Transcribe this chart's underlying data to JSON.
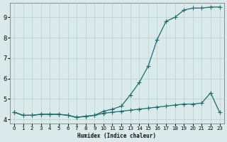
{
  "xlabel": "Humidex (Indice chaleur)",
  "ylabel": "",
  "bg_color": "#daeaea",
  "grid_color": "#b8d0d0",
  "line_color": "#1a6b6b",
  "xlim": [
    -0.5,
    23.5
  ],
  "ylim": [
    3.8,
    9.7
  ],
  "x_ticks": [
    0,
    1,
    2,
    3,
    4,
    5,
    6,
    7,
    8,
    9,
    10,
    11,
    12,
    13,
    14,
    15,
    16,
    17,
    18,
    19,
    20,
    21,
    22,
    23
  ],
  "y_ticks": [
    4,
    5,
    6,
    7,
    8,
    9
  ],
  "line1_x": [
    0,
    1,
    2,
    3,
    4,
    5,
    6,
    7,
    8,
    9,
    10,
    11,
    12,
    13,
    14,
    15,
    16,
    17,
    18,
    19,
    20,
    21,
    22,
    23
  ],
  "line1_y": [
    4.35,
    4.2,
    4.2,
    4.25,
    4.25,
    4.25,
    4.2,
    4.1,
    4.15,
    4.2,
    4.4,
    4.5,
    4.65,
    5.2,
    5.8,
    6.6,
    7.9,
    8.8,
    9.0,
    9.35,
    9.45,
    9.45,
    9.5,
    9.5
  ],
  "line2_x": [
    0,
    1,
    2,
    3,
    4,
    5,
    6,
    7,
    8,
    9,
    10,
    11,
    12,
    13,
    14,
    15,
    16,
    17,
    18,
    19,
    20,
    21,
    22,
    23
  ],
  "line2_y": [
    4.35,
    4.2,
    4.2,
    4.25,
    4.25,
    4.25,
    4.2,
    4.1,
    4.15,
    4.2,
    4.3,
    4.35,
    4.4,
    4.45,
    4.5,
    4.55,
    4.6,
    4.65,
    4.7,
    4.75,
    4.75,
    4.8,
    5.3,
    4.35
  ],
  "marker": "+",
  "marker_size": 4,
  "linewidth": 0.9
}
